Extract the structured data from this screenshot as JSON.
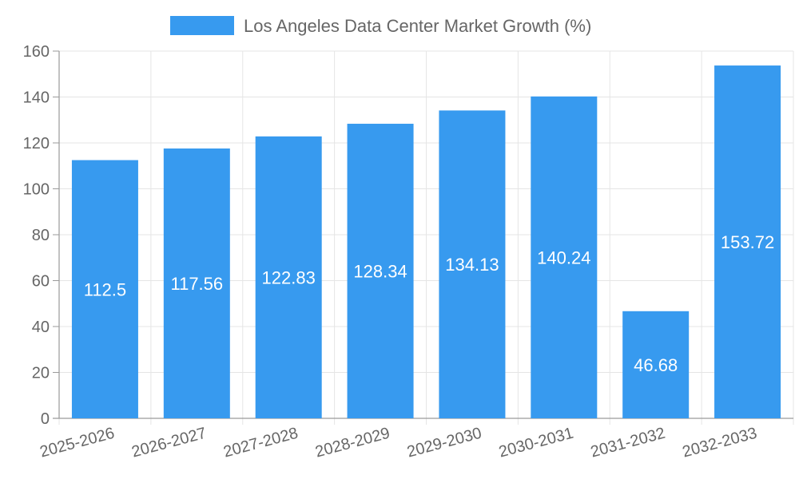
{
  "chart_data": {
    "type": "bar",
    "categories": [
      "2025-2026",
      "2026-2027",
      "2027-2028",
      "2028-2029",
      "2029-2030",
      "2030-2031",
      "2031-2032",
      "2032-2033"
    ],
    "series": [
      {
        "name": "Los Angeles Data Center Market Growth (%)",
        "values": [
          112.5,
          117.56,
          122.83,
          128.34,
          134.13,
          140.24,
          46.68,
          153.72
        ],
        "color": "#379AEF"
      }
    ],
    "title": "",
    "xlabel": "",
    "ylabel": "",
    "ylim": [
      0,
      160
    ],
    "yticks": [
      0,
      20,
      40,
      60,
      80,
      100,
      120,
      140,
      160
    ],
    "grid": true,
    "legend_position": "top",
    "data_labels": true
  },
  "colors": {
    "bar": "#379AEF",
    "grid": "#e5e5e5",
    "axis": "#9a9a9a",
    "text": "#666666"
  }
}
